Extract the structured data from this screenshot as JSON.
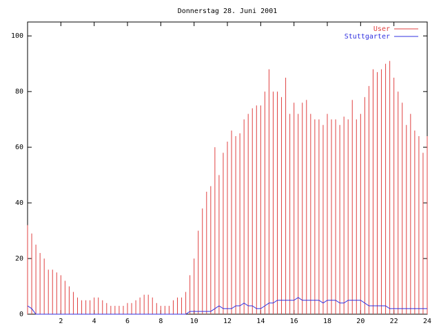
{
  "chart_data": {
    "type": "impulse-line",
    "title": "Donnerstag 28. Juni 2001",
    "x": [
      0,
      0.25,
      0.5,
      0.75,
      1,
      1.25,
      1.5,
      1.75,
      2,
      2.25,
      2.5,
      2.75,
      3,
      3.25,
      3.5,
      3.75,
      4,
      4.25,
      4.5,
      4.75,
      5,
      5.25,
      5.5,
      5.75,
      6,
      6.25,
      6.5,
      6.75,
      7,
      7.25,
      7.5,
      7.75,
      8,
      8.25,
      8.5,
      8.75,
      9,
      9.25,
      9.5,
      9.75,
      10,
      10.25,
      10.5,
      10.75,
      11,
      11.25,
      11.5,
      11.75,
      12,
      12.25,
      12.5,
      12.75,
      13,
      13.25,
      13.5,
      13.75,
      14,
      14.25,
      14.5,
      14.75,
      15,
      15.25,
      15.5,
      15.75,
      16,
      16.25,
      16.5,
      16.75,
      17,
      17.25,
      17.5,
      17.75,
      18,
      18.25,
      18.5,
      18.75,
      19,
      19.25,
      19.5,
      19.75,
      20,
      20.25,
      20.5,
      20.75,
      21,
      21.25,
      21.5,
      21.75,
      22,
      22.25,
      22.5,
      22.75,
      23,
      23.25,
      23.5,
      23.75,
      24
    ],
    "series": [
      {
        "name": "User",
        "color": "#e04040",
        "style": "impulses",
        "values": [
          32,
          29,
          25,
          22,
          20,
          16,
          16,
          15,
          14,
          12,
          10,
          8,
          6,
          5,
          5,
          5,
          6,
          6,
          5,
          4,
          3,
          3,
          3,
          3,
          4,
          4,
          5,
          6,
          7,
          7,
          6,
          4,
          3,
          3,
          3,
          5,
          6,
          6,
          8,
          14,
          20,
          30,
          38,
          44,
          46,
          60,
          50,
          58,
          62,
          66,
          64,
          65,
          70,
          72,
          74,
          75,
          75,
          80,
          88,
          80,
          80,
          78,
          85,
          72,
          76,
          72,
          76,
          77,
          72,
          70,
          70,
          68,
          72,
          70,
          70,
          68,
          71,
          70,
          77,
          70,
          72,
          78,
          82,
          88,
          87,
          88,
          90,
          91,
          85,
          80,
          76,
          68,
          72,
          66,
          64,
          58,
          64
        ]
      },
      {
        "name": "Stuttgarter",
        "color": "#3030e0",
        "style": "steps",
        "values": [
          3,
          2,
          0,
          0,
          0,
          0,
          0,
          0,
          0,
          0,
          0,
          0,
          0,
          0,
          0,
          0,
          0,
          0,
          0,
          0,
          0,
          0,
          0,
          0,
          0,
          0,
          0,
          0,
          0,
          0,
          0,
          0,
          0,
          0,
          0,
          0,
          0,
          0,
          0,
          1,
          1,
          1,
          1,
          1,
          1,
          2,
          3,
          2,
          2,
          2,
          3,
          3,
          4,
          3,
          3,
          2,
          2,
          3,
          4,
          4,
          5,
          5,
          5,
          5,
          5,
          6,
          5,
          5,
          5,
          5,
          5,
          4,
          5,
          5,
          5,
          4,
          4,
          5,
          5,
          5,
          5,
          4,
          3,
          3,
          3,
          3,
          3,
          2,
          2,
          2,
          2,
          2,
          2,
          2,
          2,
          2,
          2
        ]
      }
    ],
    "xlim": [
      0,
      24
    ],
    "xticks": [
      2,
      4,
      6,
      8,
      10,
      12,
      14,
      16,
      18,
      20,
      22,
      24
    ],
    "ylim": [
      0,
      105
    ],
    "yticks": [
      0,
      20,
      40,
      60,
      80,
      100
    ]
  }
}
